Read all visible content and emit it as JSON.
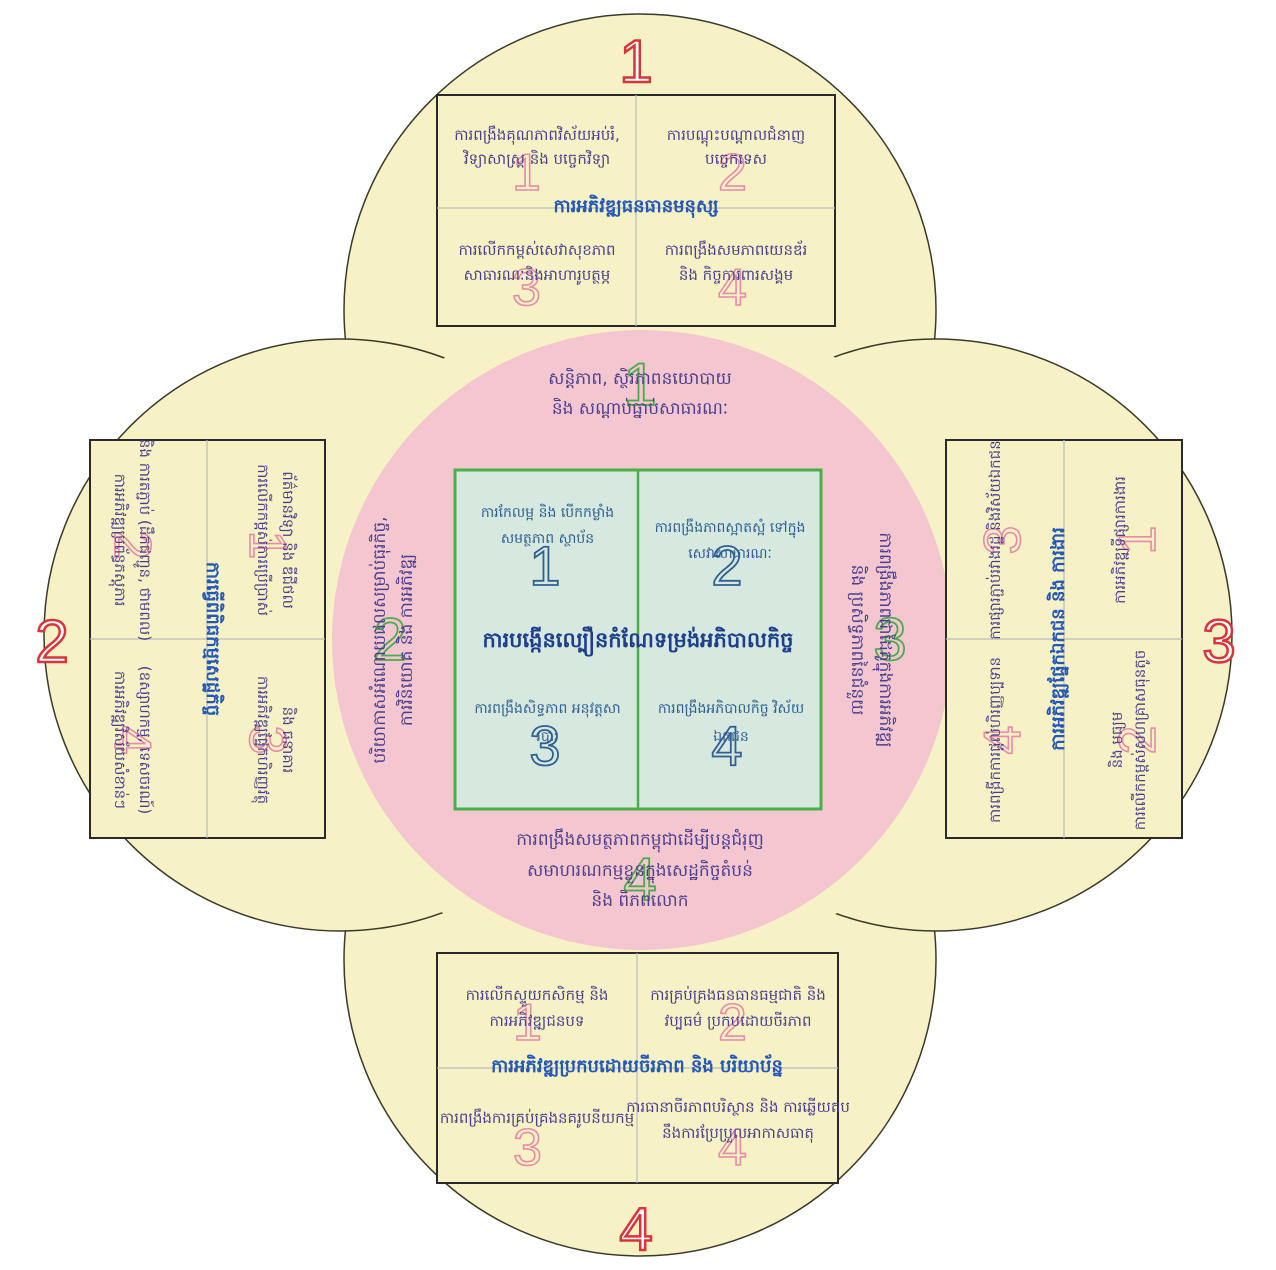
{
  "colors": {
    "petal_fill": "#f6f2c6",
    "ring_fill": "#f4c6cf",
    "core_fill": "#d7e9df",
    "core_border": "#49b049",
    "label_number": "#d8343a"
  },
  "petal_numbers": [
    "1",
    "2",
    "3",
    "4"
  ],
  "cell_numbers": [
    "1",
    "2",
    "3",
    "4"
  ],
  "core": {
    "title": "ការបង្កើនល្បឿនកំណែទម្រង់អភិបាលកិច្ច",
    "cells": [
      "ការកែលម្អ និង បើកកម្លាំងសមត្ថភាព ស្ថាប័ន",
      "ការពង្រឹងភាពស្អាតស្អំ ទៅក្នុងសេវាសាធារណៈ",
      "ការពង្រឹងសិទ្ធភាព អនុវត្តសារបារ",
      "ការពង្រឹងអភិបាលកិច្ច វិស័យឯកជន"
    ]
  },
  "ring": {
    "top": [
      "សន្តិភាព, ស្ថិរភាពនយោបាយ",
      "និង សណ្តាប់ធ្នាប់សាធារណៈ"
    ],
    "left": [
      "បរិយាកាសអំណោយផលសម្រាប់ធុរកិច្ច,",
      "ការវិនិយោគ និង ការអភិវឌ្ឍ"
    ],
    "right": [
      "ការពង្រឹងភាពជាដៃគូក្នុងការអភិវឌ្ឍ",
      "និង ប្រសិទ្ធភាពនៃជំនួយ"
    ],
    "bottom": [
      "ការពង្រឹងសមត្ថភាពកម្ពុជាដើម្បីបន្តជំរុញ",
      "សមាហរណកម្មខ្លួនក្នុងសេដ្ឋកិច្ចតំបន់",
      "និង ពិភពលោក"
    ]
  },
  "petals": {
    "top": {
      "title": "ការអភិវឌ្ឍធនធានមនុស្ស",
      "cells": [
        [
          "ការពង្រឹងគុណភាពវិស័យអប់រំ,",
          "វិទ្យាសាស្រ្ត និង បច្ចេកវិទ្យា"
        ],
        [
          "ការបណ្តុះបណ្តាលជំនាញ",
          "បច្ចេកទេស"
        ],
        [
          "ការលើកកម្ពស់សេវាសុខភាព",
          "សាធារណៈនិងអាហារូបត្ថម្ភ"
        ],
        [
          "ការពង្រឹងសមភាពយេនឌ័រ",
          "និង កិច្ចការពារសង្គម"
        ]
      ]
    },
    "left": {
      "title": "ការធ្វើពិពិធកម្មសេដ្ឋកិច្ច",
      "cells": [
        [
          "ការអភិវឌ្ឍប្រព័ន្ធភស្តុភារ",
          "និង ការតភ្ជាប់ (ដឹកជញ្ជូន, ថាមពល)"
        ],
        [
          "ការលើកកម្ពស់ការប្រើប្រាស់",
          "ព័ត៌មានវិទ្យា និង ឌីជីថល"
        ],
        [
          "ការអភិវឌ្ឍវិស័យសំខាន់ៗ",
          "(ឧស្សាហកម្ម, ទេសចរណ៍)"
        ],
        [
          "ការអភិវឌ្ឍផ្នែកហិរញ្ញវត្ថុ",
          "និង ធនាគារ"
        ]
      ]
    },
    "right": {
      "title": "ការអភិវឌ្ឍផ្នែកឯកជន និង ការងារ",
      "cells": [
        [
          "ការអភិវឌ្ឍទីផ្សារការងារ",
          ""
        ],
        [
          "ការលើកកម្ពស់សហគ្រាសធុនតូច",
          "និង មធ្យម"
        ],
        [
          "ការផ្សារភ្ជាប់រវាងរដ្ឋ និងវិស័យឯកជន",
          ""
        ],
        [
          "ការពង្រីកការផ្តល់ហិរញ្ញប្បទាន",
          ""
        ]
      ]
    },
    "bottom": {
      "title": "ការអភិវឌ្ឍប្រកបដោយចីរភាព និង បរិយាប័ន្ន",
      "cells": [
        [
          "ការលើកស្ទួយកសិកម្ម និង",
          "ការអភិវឌ្ឍជនបទ"
        ],
        [
          "ការគ្រប់គ្រងធនធានធម្មជាតិ និង",
          "វប្បធម៌ ប្រកបដោយចីរភាព"
        ],
        [
          "ការពង្រឹងការគ្រប់គ្រងនគរូបនីយកម្ម",
          ""
        ],
        [
          "ការធានាចីរភាពបរិស្ថាន និង ការឆ្លើយតប",
          "នឹងការប្រែប្រួលអាកាសធាតុ"
        ]
      ]
    }
  }
}
